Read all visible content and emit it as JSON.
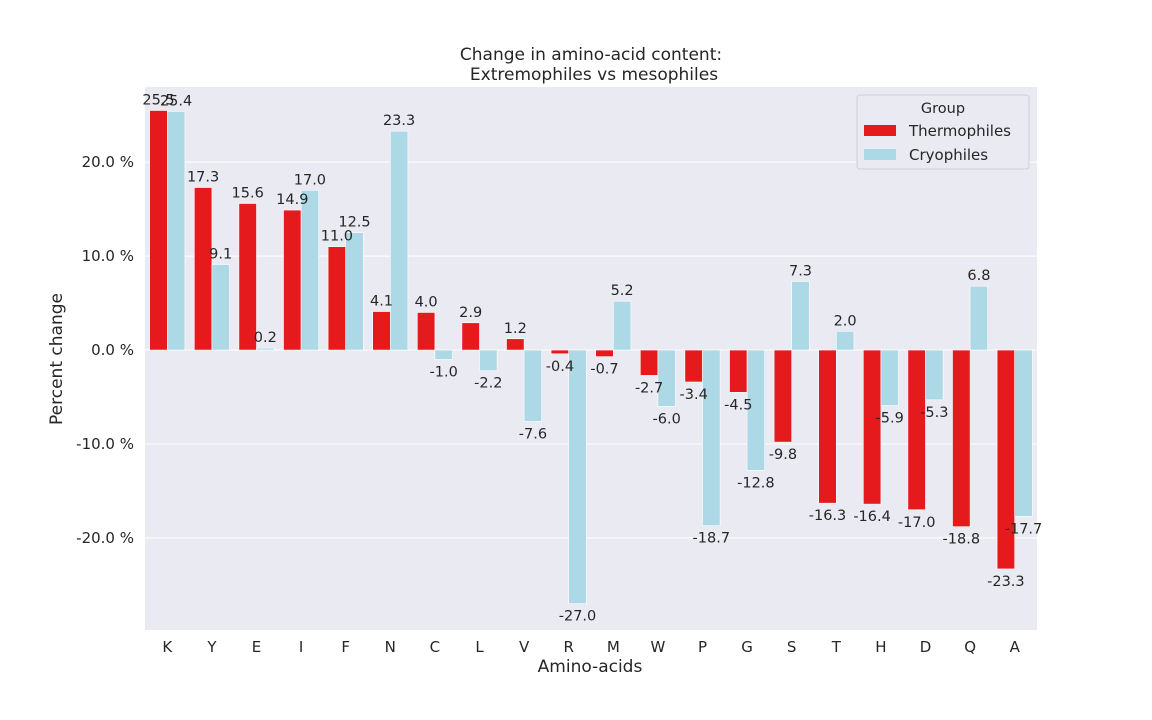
{
  "chart_data": {
    "type": "bar",
    "title": [
      "Change in amino-acid content:",
      "Extremophiles vs mesophiles"
    ],
    "xlabel": "Amino-acids",
    "ylabel": "Percent change",
    "categories": [
      "K",
      "Y",
      "E",
      "I",
      "F",
      "N",
      "C",
      "L",
      "V",
      "R",
      "M",
      "W",
      "P",
      "G",
      "S",
      "T",
      "H",
      "D",
      "Q",
      "A"
    ],
    "series": [
      {
        "name": "Thermophiles",
        "color": "#e41a1c",
        "values": [
          25.5,
          17.3,
          15.6,
          14.9,
          11.0,
          4.1,
          4.0,
          2.9,
          1.2,
          -0.4,
          -0.7,
          -2.7,
          -3.4,
          -4.5,
          -9.8,
          -16.3,
          -16.4,
          -17.0,
          -18.8,
          -23.3
        ]
      },
      {
        "name": "Cryophiles",
        "color": "#add8e6",
        "values": [
          25.4,
          9.1,
          0.2,
          17.0,
          12.5,
          23.3,
          -1.0,
          -2.2,
          -7.6,
          -27.0,
          5.2,
          -6.0,
          -18.7,
          -12.8,
          7.3,
          2.0,
          -5.9,
          -5.3,
          6.8,
          -17.7
        ]
      }
    ],
    "yticks": [
      20,
      10,
      0,
      -10,
      -20
    ],
    "ytick_labels": [
      "20.0 %",
      "10.0 %",
      "0.0 %",
      "-10.0 %",
      "-20.0 %"
    ],
    "ylim": [
      -29.8,
      28.0
    ],
    "legend": {
      "title": "Group",
      "placement": "top-right"
    },
    "grid": true,
    "background": "#eaeaf2"
  }
}
